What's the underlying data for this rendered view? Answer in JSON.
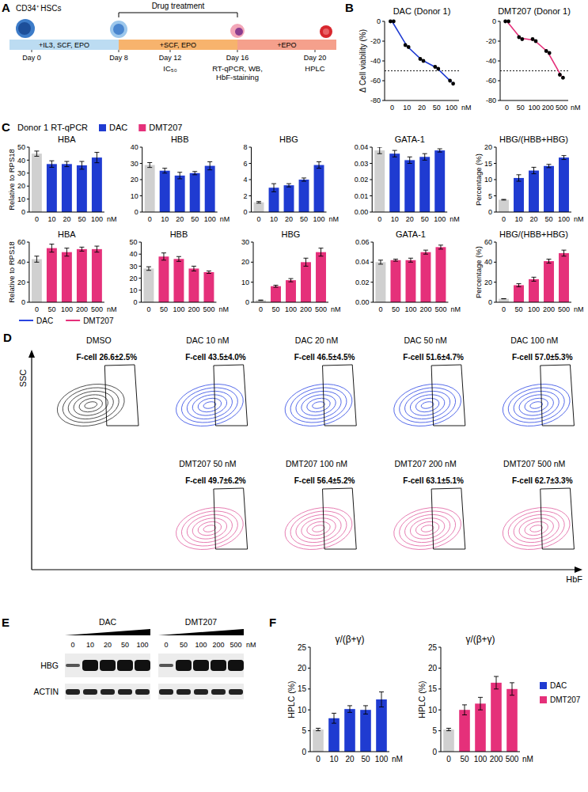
{
  "panel_letters": [
    "A",
    "B",
    "C",
    "D",
    "E",
    "F"
  ],
  "schematic": {
    "cell_label": "CD34⁺ HSCs",
    "bracket_label": "Drug treatment",
    "media": [
      "+IL3, SCF, EPO",
      "+SCF, EPO",
      "+EPO"
    ],
    "days": [
      "Day 0",
      "Day 8",
      "Day 12",
      "Day 16",
      "Day 20"
    ],
    "readouts": [
      null,
      null,
      [
        "IC₅₀"
      ],
      [
        "RT-qPCR, WB,",
        "HbF-staining"
      ],
      [
        "HPLC"
      ]
    ]
  },
  "chart_data": [
    {
      "type": "line",
      "title": "DAC (Donor 1)",
      "y_label": "Δ Cell viability (%)",
      "x_label": "nM",
      "categories": [
        "0",
        "10",
        "20",
        "50",
        "100"
      ],
      "series": [
        {
          "color": "#1f3bd1",
          "marker": "circle",
          "values": [
            0,
            -25,
            -39,
            -47,
            -61.5
          ],
          "replicates": [
            [
              0,
              0
            ],
            [
              -24,
              -26
            ],
            [
              -38,
              -40
            ],
            [
              -46,
              -48
            ],
            [
              -60,
              -63
            ]
          ]
        }
      ],
      "ylim": [
        -80,
        0
      ],
      "yticks": [
        0,
        -20,
        -40,
        -60,
        -80
      ],
      "hline": -50
    },
    {
      "type": "line",
      "title": "DMT207 (Donor 1)",
      "x_label": "nM",
      "categories": [
        "0",
        "50",
        "100",
        "200",
        "500"
      ],
      "series": [
        {
          "color": "#e5307a",
          "marker": "circle",
          "values": [
            0,
            -17,
            -19,
            -31,
            -55.5
          ],
          "replicates": [
            [
              0,
              0
            ],
            [
              -16,
              -18
            ],
            [
              -18,
              -20
            ],
            [
              -30,
              -32
            ],
            [
              -54,
              -57
            ]
          ]
        }
      ],
      "ylim": [
        -80,
        0
      ],
      "yticks": [
        0,
        -20,
        -40,
        -60,
        -80
      ],
      "hline": -50
    },
    {
      "type": "bar",
      "title": "HBA",
      "y_label": "Relative to RPS18",
      "x_label": "nM",
      "categories": [
        "0",
        "10",
        "20",
        "50",
        "100"
      ],
      "values": [
        45,
        37,
        37,
        36,
        42
      ],
      "errors": [
        2,
        2.5,
        2,
        3,
        4
      ],
      "colors": [
        "#d0d0d0",
        "#1f3bd1",
        "#1f3bd1",
        "#1f3bd1",
        "#1f3bd1"
      ],
      "ylim": [
        0,
        50
      ],
      "yticks": [
        0,
        10,
        20,
        30,
        40,
        50
      ]
    },
    {
      "type": "bar",
      "title": "HBB",
      "x_label": "nM",
      "categories": [
        "0",
        "10",
        "20",
        "50",
        "100"
      ],
      "values": [
        29,
        25.5,
        22.5,
        24,
        28.5
      ],
      "errors": [
        1.5,
        1.5,
        2,
        1,
        2.5
      ],
      "colors": [
        "#d0d0d0",
        "#1f3bd1",
        "#1f3bd1",
        "#1f3bd1",
        "#1f3bd1"
      ],
      "ylim": [
        0,
        40
      ],
      "yticks": [
        0,
        10,
        20,
        30,
        40
      ]
    },
    {
      "type": "bar",
      "title": "HBG",
      "x_label": "nM",
      "categories": [
        "0",
        "10",
        "20",
        "50",
        "100"
      ],
      "values": [
        1.2,
        3.0,
        3.3,
        4.0,
        5.8
      ],
      "errors": [
        0.1,
        0.5,
        0.2,
        0.2,
        0.4
      ],
      "colors": [
        "#d0d0d0",
        "#1f3bd1",
        "#1f3bd1",
        "#1f3bd1",
        "#1f3bd1"
      ],
      "ylim": [
        0,
        8
      ],
      "yticks": [
        0,
        2,
        4,
        6,
        8
      ]
    },
    {
      "type": "bar",
      "title": "GATA-1",
      "x_label": "nM",
      "categories": [
        "0",
        "10",
        "20",
        "50",
        "100"
      ],
      "values": [
        0.038,
        0.036,
        0.032,
        0.034,
        0.038
      ],
      "errors": [
        0.002,
        0.002,
        0.002,
        0.002,
        0.001
      ],
      "colors": [
        "#d0d0d0",
        "#1f3bd1",
        "#1f3bd1",
        "#1f3bd1",
        "#1f3bd1"
      ],
      "ylim": [
        0,
        0.04
      ],
      "yticks": [
        {
          "value": 0,
          "label": "0.00"
        },
        0.01,
        0.02,
        0.03,
        0.04
      ]
    },
    {
      "type": "bar",
      "title": "HBG/(HBB+HBG)",
      "y_label": "Percentage (%)",
      "x_label": "nM",
      "categories": [
        "0",
        "10",
        "20",
        "50",
        "100"
      ],
      "values": [
        3.8,
        10.5,
        12.8,
        14.2,
        16.8
      ],
      "errors": [
        0.1,
        1,
        1,
        0.5,
        0.6
      ],
      "colors": [
        "#d0d0d0",
        "#1f3bd1",
        "#1f3bd1",
        "#1f3bd1",
        "#1f3bd1"
      ],
      "ylim": [
        0,
        20
      ],
      "yticks": [
        0,
        5,
        10,
        15,
        20
      ]
    },
    {
      "type": "bar",
      "title": "HBA",
      "y_label": "Relative to RPS18",
      "x_label": "nM",
      "categories": [
        "0",
        "50",
        "100",
        "200",
        "500"
      ],
      "values": [
        43,
        54,
        50,
        53,
        53
      ],
      "errors": [
        3,
        4,
        4,
        2,
        3
      ],
      "colors": [
        "#d0d0d0",
        "#e5307a",
        "#e5307a",
        "#e5307a",
        "#e5307a"
      ],
      "ylim": [
        0,
        60
      ],
      "yticks": [
        0,
        20,
        40,
        60
      ]
    },
    {
      "type": "bar",
      "title": "HBB",
      "x_label": "nM",
      "categories": [
        "0",
        "50",
        "100",
        "200",
        "500"
      ],
      "values": [
        28,
        38,
        36,
        28,
        25
      ],
      "errors": [
        1.5,
        3,
        2,
        2,
        1
      ],
      "colors": [
        "#d0d0d0",
        "#e5307a",
        "#e5307a",
        "#e5307a",
        "#e5307a"
      ],
      "ylim": [
        0,
        50
      ],
      "yticks": [
        0,
        10,
        20,
        30,
        40,
        50
      ]
    },
    {
      "type": "bar",
      "title": "HBG",
      "x_label": "nM",
      "categories": [
        "0",
        "50",
        "100",
        "200",
        "500"
      ],
      "values": [
        1,
        8,
        11,
        20,
        25
      ],
      "errors": [
        0.1,
        0.5,
        0.8,
        2,
        2
      ],
      "colors": [
        "#d0d0d0",
        "#e5307a",
        "#e5307a",
        "#e5307a",
        "#e5307a"
      ],
      "ylim": [
        0,
        30
      ],
      "yticks": [
        0,
        10,
        20,
        30
      ]
    },
    {
      "type": "bar",
      "title": "GATA-1",
      "x_label": "nM",
      "categories": [
        "0",
        "50",
        "100",
        "200",
        "500"
      ],
      "values": [
        0.04,
        0.042,
        0.042,
        0.05,
        0.055
      ],
      "errors": [
        0.002,
        0.001,
        0.002,
        0.002,
        0.002
      ],
      "colors": [
        "#d0d0d0",
        "#e5307a",
        "#e5307a",
        "#e5307a",
        "#e5307a"
      ],
      "ylim": [
        0,
        0.06
      ],
      "yticks": [
        {
          "value": 0,
          "label": "0.00"
        },
        0.02,
        0.04,
        0.06
      ]
    },
    {
      "type": "bar",
      "title": "HBG/(HBB+HBG)",
      "y_label": "Percentage (%)",
      "x_label": "nM",
      "categories": [
        "0",
        "50",
        "100",
        "200",
        "500"
      ],
      "values": [
        3.5,
        17,
        23,
        41,
        49
      ],
      "errors": [
        0.1,
        1.5,
        2,
        2,
        3
      ],
      "colors": [
        "#d0d0d0",
        "#e5307a",
        "#e5307a",
        "#e5307a",
        "#e5307a"
      ],
      "ylim": [
        0,
        60
      ],
      "yticks": [
        0,
        20,
        40,
        60
      ]
    },
    {
      "type": "bar",
      "title": "γ/(β+γ)",
      "y_label": "HPLC (%)",
      "x_label": "nM",
      "categories": [
        "0",
        "10",
        "20",
        "50",
        "100"
      ],
      "values": [
        5.3,
        8,
        10.2,
        10,
        12.5
      ],
      "errors": [
        0.3,
        1.2,
        0.8,
        1,
        1.8
      ],
      "colors": [
        "#d0d0d0",
        "#1f3bd1",
        "#1f3bd1",
        "#1f3bd1",
        "#1f3bd1"
      ],
      "ylim": [
        0,
        25
      ],
      "yticks": [
        0,
        5,
        10,
        15,
        20,
        25
      ]
    },
    {
      "type": "bar",
      "title": "γ/(β+γ)",
      "y_label": "HPLC (%)",
      "x_label": "nM",
      "categories": [
        "0",
        "50",
        "100",
        "200",
        "500"
      ],
      "values": [
        5.3,
        10,
        11.5,
        16.5,
        15
      ],
      "errors": [
        0.3,
        1.2,
        1.5,
        1.5,
        1.5
      ],
      "colors": [
        "#d0d0d0",
        "#e5307a",
        "#e5307a",
        "#e5307a",
        "#e5307a"
      ],
      "ylim": [
        0,
        25
      ],
      "yticks": [
        0,
        5,
        10,
        15,
        20,
        25
      ]
    }
  ],
  "c_legend": {
    "title": "Donor 1 RT-qPCR",
    "items": [
      {
        "name": "DAC",
        "color": "#1f3bd1"
      },
      {
        "name": "DMT207",
        "color": "#e5307a"
      }
    ]
  },
  "f_legend": {
    "items": [
      {
        "name": "DAC",
        "color": "#1f3bd1"
      },
      {
        "name": "DMT207",
        "color": "#e5307a"
      }
    ]
  },
  "flow": {
    "y_axis": "SSC",
    "x_axis": "HbF",
    "legend": [
      {
        "name": "DAC",
        "color": "#2a45e0"
      },
      {
        "name": "DMT207",
        "color": "#e5307a"
      }
    ],
    "panels": [
      {
        "title": "DMSO",
        "label": "F-cell 26.6±2.5%",
        "color": "#333333"
      },
      {
        "title": "DAC 10 nM",
        "label": "F-cell 43.5±4.0%",
        "color": "#3a52e6"
      },
      {
        "title": "DAC 20 nM",
        "label": "F-cell 46.5±4.5%",
        "color": "#3a52e6"
      },
      {
        "title": "DAC 50 nM",
        "label": "F-cell 51.6±4.7%",
        "color": "#3a52e6"
      },
      {
        "title": "DAC 100 nM",
        "label": "F-cell 57.0±5.3%",
        "color": "#3a52e6"
      },
      {
        "title": "DMT207 50 nM",
        "label": "F-cell 49.7±6.2%",
        "color": "#e26aa6"
      },
      {
        "title": "DMT207 100 nM",
        "label": "F-cell 56.4±5.2%",
        "color": "#e26aa6"
      },
      {
        "title": "DMT207 200 nM",
        "label": "F-cell 63.1±5.1%",
        "color": "#e26aa6"
      },
      {
        "title": "DMT207 500 nM",
        "label": "F-cell 62.7±3.3%",
        "color": "#e26aa6"
      }
    ]
  },
  "blot": {
    "groups": [
      {
        "name": "DAC",
        "lanes": [
          "0",
          "10",
          "20",
          "50",
          "100"
        ]
      },
      {
        "name": "DMT207",
        "lanes": [
          "0",
          "50",
          "100",
          "200",
          "500"
        ]
      }
    ],
    "unit": "nM",
    "rows": [
      "HBG",
      "ACTIN"
    ]
  }
}
